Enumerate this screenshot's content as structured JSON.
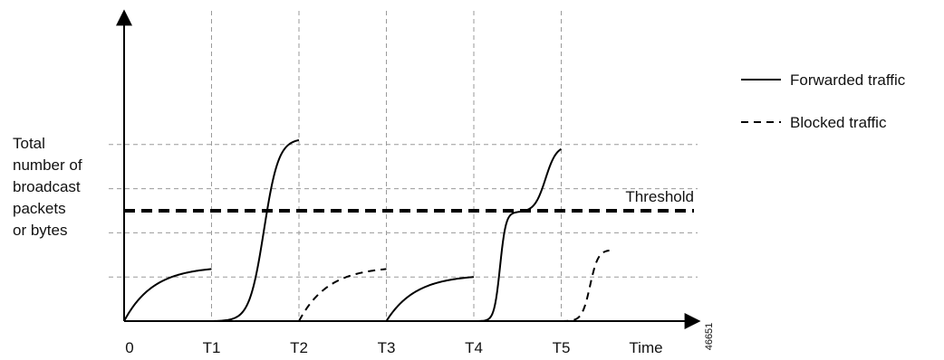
{
  "chart_data": {
    "type": "line",
    "title": "",
    "ylabel_lines": [
      "Total",
      "number of",
      "broadcast",
      "packets",
      "or bytes"
    ],
    "xlabel": "Time",
    "x_ticks": [
      "0",
      "T1",
      "T2",
      "T3",
      "T4",
      "T5"
    ],
    "figure_id": "46651",
    "threshold": {
      "label": "Threshold",
      "value": 2.5
    },
    "ylim": [
      0,
      5
    ],
    "xlim": [
      0,
      5.6
    ],
    "grid": {
      "vertical_dashed": true,
      "horizontal_dashed": [
        1,
        2,
        3,
        4
      ]
    },
    "legend": {
      "position": "top-right",
      "entries": [
        {
          "label": "Forwarded traffic",
          "style": "solid"
        },
        {
          "label": "Blocked traffic",
          "style": "dashed"
        }
      ]
    },
    "series": [
      {
        "style": "solid",
        "interval": [
          0,
          1
        ],
        "shape": "saturating",
        "end_value": 1.18
      },
      {
        "style": "solid",
        "interval": [
          1,
          2
        ],
        "shape": "s-curve",
        "end_value": 4.1
      },
      {
        "style": "dashed",
        "interval": [
          2,
          3
        ],
        "shape": "saturating",
        "end_value": 1.18
      },
      {
        "style": "solid",
        "interval": [
          3,
          4
        ],
        "shape": "saturating",
        "end_value": 1.0
      },
      {
        "style": "solid",
        "interval": [
          4,
          5
        ],
        "shape": "double-s-curve",
        "end_value": 3.9
      },
      {
        "style": "dashed",
        "interval": [
          5,
          5.55
        ],
        "shape": "s-curve",
        "end_value": 1.6
      }
    ],
    "colors": {
      "line": "#000000",
      "grid": "#9a9a9a"
    }
  }
}
